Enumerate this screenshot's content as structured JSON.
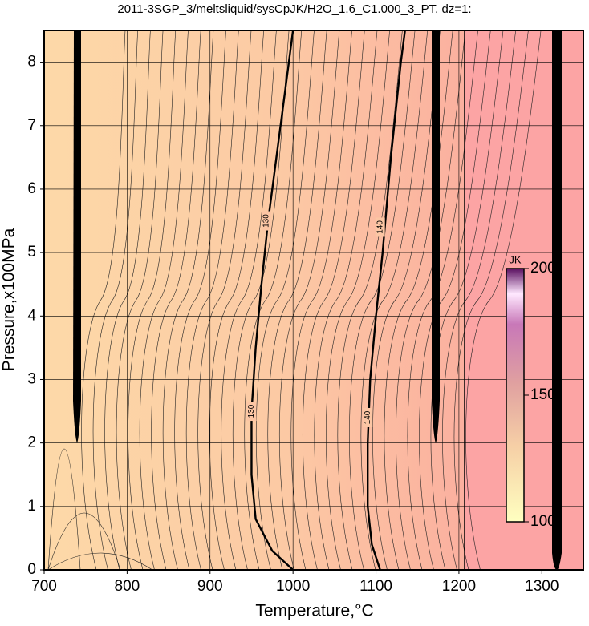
{
  "chart_data": {
    "type": "contour",
    "title": "2011-3SGP_3/meltsliquid/sysCpJK/H2O_1.6_C1.000_3_PT, dz=1:",
    "x_label": "Temperature,°C",
    "y_label": "Pressure,x100MPa",
    "xlim": [
      700,
      1350
    ],
    "ylim": [
      0,
      8.5
    ],
    "xticks": [
      700,
      800,
      900,
      1000,
      1100,
      1200,
      1300
    ],
    "yticks": [
      0,
      1,
      2,
      3,
      4,
      5,
      6,
      7,
      8
    ],
    "grid": true,
    "contours": [
      {
        "level": 130,
        "x": [
          1000,
          975,
          955,
          950,
          950,
          955,
          962,
          970,
          985,
          1000
        ],
        "y": [
          0,
          0.3,
          0.8,
          1.5,
          2.5,
          3.5,
          4.5,
          5.5,
          7,
          8.5
        ],
        "label_at": [
          [
            950,
            2.5
          ],
          [
            968,
            5.5
          ]
        ]
      },
      {
        "level": 140,
        "x": [
          1105,
          1095,
          1090,
          1090,
          1093,
          1100,
          1108,
          1118,
          1130,
          1135
        ],
        "y": [
          0,
          0.4,
          1,
          2,
          3,
          4,
          5,
          6.5,
          8,
          8.5
        ],
        "label_at": [
          [
            1090,
            2.4
          ],
          [
            1105,
            5.4
          ]
        ]
      }
    ],
    "colorbar": {
      "label": "JK",
      "lim": [
        100,
        200
      ],
      "ticks": [
        100,
        150,
        200
      ]
    }
  }
}
